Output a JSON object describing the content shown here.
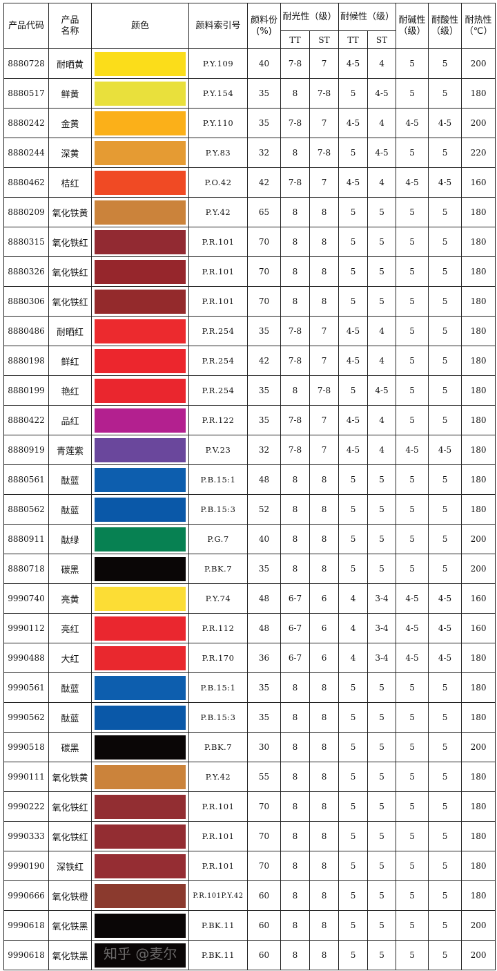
{
  "header": {
    "code": "产品代码",
    "name": "产品\n名称",
    "color": "颜色",
    "index": "颜料索引号",
    "pigment": "颜料份\n(%)",
    "light": "耐光性（级）",
    "weather": "耐候性（级）",
    "tt": "TT",
    "st": "ST",
    "alkali": "耐碱性\n（级）",
    "acid": "耐酸性\n（级）",
    "heat": "耐热性\n（℃）"
  },
  "rows": [
    {
      "code": "8880728",
      "name": "耐晒黄",
      "color": "#fbdd1a",
      "index": "P.Y.109",
      "pct": "40",
      "lt": "7-8",
      "ls": "7",
      "wt": "4-5",
      "ws": "4",
      "alk": "5",
      "acid": "5",
      "heat": "200"
    },
    {
      "code": "8880517",
      "name": "鲜黄",
      "color": "#e9e03c",
      "index": "P.Y.154",
      "pct": "35",
      "lt": "8",
      "ls": "7-8",
      "wt": "5",
      "ws": "4-5",
      "alk": "5",
      "acid": "5",
      "heat": "180"
    },
    {
      "code": "8880242",
      "name": "金黄",
      "color": "#fbb019",
      "index": "P.Y.110",
      "pct": "35",
      "lt": "7-8",
      "ls": "7",
      "wt": "4-5",
      "ws": "4",
      "alk": "4-5",
      "acid": "4-5",
      "heat": "200"
    },
    {
      "code": "8880244",
      "name": "深黄",
      "color": "#e59b33",
      "index": "P.Y.83",
      "pct": "32",
      "lt": "8",
      "ls": "7-8",
      "wt": "5",
      "ws": "4-5",
      "alk": "5",
      "acid": "5",
      "heat": "220"
    },
    {
      "code": "8880462",
      "name": "桔红",
      "color": "#f04a24",
      "index": "P.O.42",
      "pct": "42",
      "lt": "7-8",
      "ls": "7",
      "wt": "4-5",
      "ws": "4",
      "alk": "4-5",
      "acid": "4-5",
      "heat": "160"
    },
    {
      "code": "8880209",
      "name": "氧化铁黄",
      "color": "#cb833b",
      "index": "P.Y.42",
      "pct": "65",
      "lt": "8",
      "ls": "8",
      "wt": "5",
      "ws": "5",
      "alk": "5",
      "acid": "5",
      "heat": "180"
    },
    {
      "code": "8880315",
      "name": "氧化铁红",
      "color": "#922a32",
      "index": "P.R.101",
      "pct": "70",
      "lt": "8",
      "ls": "8",
      "wt": "5",
      "ws": "5",
      "alk": "5",
      "acid": "5",
      "heat": "180"
    },
    {
      "code": "8880326",
      "name": "氧化铁红",
      "color": "#96262c",
      "index": "P.R.101",
      "pct": "70",
      "lt": "8",
      "ls": "8",
      "wt": "5",
      "ws": "5",
      "alk": "5",
      "acid": "5",
      "heat": "180"
    },
    {
      "code": "8880306",
      "name": "氧化铁红",
      "color": "#942a2c",
      "index": "P.R.101",
      "pct": "70",
      "lt": "8",
      "ls": "8",
      "wt": "5",
      "ws": "5",
      "alk": "5",
      "acid": "5",
      "heat": "180"
    },
    {
      "code": "8880486",
      "name": "耐晒红",
      "color": "#ec2a2e",
      "index": "P.R.254",
      "pct": "35",
      "lt": "7-8",
      "ls": "7",
      "wt": "4-5",
      "ws": "4",
      "alk": "5",
      "acid": "5",
      "heat": "180"
    },
    {
      "code": "8880198",
      "name": "鲜红",
      "color": "#ec262d",
      "index": "P.R.254",
      "pct": "42",
      "lt": "7-8",
      "ls": "7",
      "wt": "4-5",
      "ws": "4",
      "alk": "5",
      "acid": "5",
      "heat": "180"
    },
    {
      "code": "8880199",
      "name": "艳红",
      "color": "#ea262e",
      "index": "P.R.254",
      "pct": "35",
      "lt": "8",
      "ls": "7-8",
      "wt": "5",
      "ws": "4-5",
      "alk": "5",
      "acid": "5",
      "heat": "180"
    },
    {
      "code": "8880422",
      "name": "品红",
      "color": "#b3208f",
      "index": "P.R.122",
      "pct": "35",
      "lt": "7-8",
      "ls": "7",
      "wt": "4-5",
      "ws": "4",
      "alk": "5",
      "acid": "5",
      "heat": "180"
    },
    {
      "code": "8880919",
      "name": "青莲紫",
      "color": "#6a479c",
      "index": "P.V.23",
      "pct": "32",
      "lt": "7-8",
      "ls": "7",
      "wt": "4-5",
      "ws": "4",
      "alk": "4-5",
      "acid": "4-5",
      "heat": "180"
    },
    {
      "code": "8880561",
      "name": "酞蓝",
      "color": "#0d5eae",
      "index": "P.B.15:1",
      "pct": "48",
      "lt": "8",
      "ls": "8",
      "wt": "5",
      "ws": "5",
      "alk": "5",
      "acid": "5",
      "heat": "180"
    },
    {
      "code": "8880562",
      "name": "酞蓝",
      "color": "#0a58a8",
      "index": "P.B.15:3",
      "pct": "52",
      "lt": "8",
      "ls": "8",
      "wt": "5",
      "ws": "5",
      "alk": "5",
      "acid": "5",
      "heat": "180"
    },
    {
      "code": "8880911",
      "name": "酞绿",
      "color": "#078152",
      "index": "P.G.7",
      "pct": "40",
      "lt": "8",
      "ls": "8",
      "wt": "5",
      "ws": "5",
      "alk": "5",
      "acid": "5",
      "heat": "200"
    },
    {
      "code": "8880718",
      "name": "碳黑",
      "color": "#0a0606",
      "index": "P.BK.7",
      "pct": "35",
      "lt": "8",
      "ls": "8",
      "wt": "5",
      "ws": "5",
      "alk": "5",
      "acid": "5",
      "heat": "200"
    },
    {
      "code": "9990740",
      "name": "亮黄",
      "color": "#fcdd35",
      "index": "P.Y.74",
      "pct": "48",
      "lt": "6-7",
      "ls": "6",
      "wt": "4",
      "ws": "3-4",
      "alk": "4-5",
      "acid": "4-5",
      "heat": "160"
    },
    {
      "code": "9990112",
      "name": "亮红",
      "color": "#ea272f",
      "index": "P.R.112",
      "pct": "48",
      "lt": "6-7",
      "ls": "6",
      "wt": "4",
      "ws": "3-4",
      "alk": "4-5",
      "acid": "4-5",
      "heat": "160"
    },
    {
      "code": "9990488",
      "name": "大红",
      "color": "#e9282e",
      "index": "P.R.170",
      "pct": "36",
      "lt": "6-7",
      "ls": "6",
      "wt": "4",
      "ws": "3-4",
      "alk": "4-5",
      "acid": "4-5",
      "heat": "180"
    },
    {
      "code": "9990561",
      "name": "酞蓝",
      "color": "#0d5eae",
      "index": "P.B.15:1",
      "pct": "35",
      "lt": "8",
      "ls": "8",
      "wt": "5",
      "ws": "5",
      "alk": "5",
      "acid": "5",
      "heat": "180"
    },
    {
      "code": "9990562",
      "name": "酞蓝",
      "color": "#0a58a8",
      "index": "P.B.15:3",
      "pct": "35",
      "lt": "8",
      "ls": "8",
      "wt": "5",
      "ws": "5",
      "alk": "5",
      "acid": "5",
      "heat": "180"
    },
    {
      "code": "9990518",
      "name": "碳黑",
      "color": "#0a0606",
      "index": "P.BK.7",
      "pct": "30",
      "lt": "8",
      "ls": "8",
      "wt": "5",
      "ws": "5",
      "alk": "5",
      "acid": "5",
      "heat": "200"
    },
    {
      "code": "9990111",
      "name": "氧化铁黄",
      "color": "#cb833b",
      "index": "P.Y.42",
      "pct": "55",
      "lt": "8",
      "ls": "8",
      "wt": "5",
      "ws": "5",
      "alk": "5",
      "acid": "5",
      "heat": "180"
    },
    {
      "code": "9990222",
      "name": "氧化铁红",
      "color": "#922e32",
      "index": "P.R.101",
      "pct": "70",
      "lt": "8",
      "ls": "8",
      "wt": "5",
      "ws": "5",
      "alk": "5",
      "acid": "5",
      "heat": "180"
    },
    {
      "code": "9990333",
      "name": "氧化铁红",
      "color": "#932d32",
      "index": "P.R.101",
      "pct": "70",
      "lt": "8",
      "ls": "8",
      "wt": "5",
      "ws": "5",
      "alk": "5",
      "acid": "5",
      "heat": "180"
    },
    {
      "code": "9990190",
      "name": "深铁红",
      "color": "#952d33",
      "index": "P.R.101",
      "pct": "70",
      "lt": "8",
      "ls": "8",
      "wt": "5",
      "ws": "5",
      "alk": "5",
      "acid": "5",
      "heat": "180"
    },
    {
      "code": "9990666",
      "name": "氧化铁橙",
      "color": "#8b3a2e",
      "index": "P.R.101P.Y.42",
      "pct": "60",
      "lt": "8",
      "ls": "8",
      "wt": "5",
      "ws": "5",
      "alk": "5",
      "acid": "5",
      "heat": "180"
    },
    {
      "code": "9990618",
      "name": "氧化铁黑",
      "color": "#0a0606",
      "index": "P.BK.11",
      "pct": "60",
      "lt": "8",
      "ls": "8",
      "wt": "5",
      "ws": "5",
      "alk": "5",
      "acid": "5",
      "heat": "200"
    },
    {
      "code": "9990618",
      "name": "氧化铁黑",
      "color": "#0a0606",
      "index": "P.BK.11",
      "pct": "60",
      "lt": "8",
      "ls": "8",
      "wt": "5",
      "ws": "5",
      "alk": "5",
      "acid": "5",
      "heat": "200"
    }
  ],
  "watermark": "知乎 @麦尔"
}
